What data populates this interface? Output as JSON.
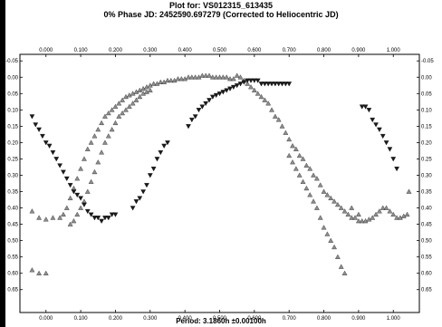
{
  "header": {
    "title_line1": "Plot for: VS012315_613435",
    "title_line2": "0% Phase JD:  2452590.697279   (Corrected to Heliocentric JD)"
  },
  "footer": {
    "period_label": "Period: 3.1860h  ±0.00100h"
  },
  "colors": {
    "frame_bar": "#000000",
    "triangle_up_fill": "#8c8c8c",
    "triangle_down_fill": "#1a1a1a"
  },
  "chart_data": {
    "type": "scatter",
    "title": "Plot for: VS012315_613435",
    "xlabel": "Period: 3.1860h  ±0.00100h",
    "ylabel": "",
    "xlim": [
      -0.075,
      1.075
    ],
    "ylim": [
      0.72,
      -0.07
    ],
    "x_tick_labels": [
      "0.000",
      "0.100",
      "0.200",
      "0.300",
      "0.400",
      "0.500",
      "0.600",
      "0.700",
      "0.800",
      "0.900",
      "1.000"
    ],
    "y_tick_labels": [
      "-0.05",
      "0.00",
      "0.05",
      "0.10",
      "0.15",
      "0.20",
      "0.25",
      "0.30",
      "0.35",
      "0.40",
      "0.45",
      "0.50",
      "0.55",
      "0.60",
      "0.65"
    ],
    "grid": false,
    "series": [
      {
        "marker": "triangle-up",
        "points": [
          [
            -0.04,
            0.59
          ],
          [
            -0.02,
            0.6
          ],
          [
            0.0,
            0.6
          ],
          [
            -0.04,
            0.41
          ],
          [
            -0.02,
            0.43
          ],
          [
            0.0,
            0.435
          ],
          [
            0.02,
            0.43
          ],
          [
            0.04,
            0.43
          ],
          [
            0.05,
            0.42
          ],
          [
            0.06,
            0.4
          ],
          [
            0.07,
            0.37
          ],
          [
            0.08,
            0.34
          ],
          [
            0.09,
            0.31
          ],
          [
            0.1,
            0.28
          ],
          [
            0.11,
            0.25
          ],
          [
            0.12,
            0.22
          ],
          [
            0.13,
            0.2
          ],
          [
            0.14,
            0.18
          ],
          [
            0.15,
            0.16
          ],
          [
            0.16,
            0.14
          ],
          [
            0.17,
            0.12
          ],
          [
            0.18,
            0.11
          ],
          [
            0.19,
            0.1
          ],
          [
            0.2,
            0.09
          ],
          [
            0.21,
            0.08
          ],
          [
            0.22,
            0.07
          ],
          [
            0.23,
            0.06
          ],
          [
            0.24,
            0.055
          ],
          [
            0.25,
            0.05
          ],
          [
            0.26,
            0.045
          ],
          [
            0.27,
            0.04
          ],
          [
            0.28,
            0.035
          ],
          [
            0.29,
            0.03
          ],
          [
            0.3,
            0.025
          ],
          [
            0.31,
            0.02
          ],
          [
            0.32,
            0.02
          ],
          [
            0.33,
            0.015
          ],
          [
            0.34,
            0.015
          ],
          [
            0.35,
            0.01
          ],
          [
            0.36,
            0.01
          ],
          [
            0.37,
            0.01
          ],
          [
            0.38,
            0.005
          ],
          [
            0.39,
            0.005
          ],
          [
            0.4,
            0.005
          ],
          [
            0.41,
            0.0
          ],
          [
            0.42,
            0.0
          ],
          [
            0.43,
            0.0
          ],
          [
            0.44,
            0.0
          ],
          [
            0.45,
            -0.005
          ],
          [
            0.46,
            -0.005
          ],
          [
            0.47,
            -0.005
          ],
          [
            0.48,
            0.0
          ],
          [
            0.49,
            0.0
          ],
          [
            0.5,
            0.0
          ],
          [
            0.51,
            0.0
          ],
          [
            0.52,
            0.0
          ],
          [
            0.53,
            0.005
          ],
          [
            0.54,
            0.005
          ],
          [
            0.55,
            -0.005
          ],
          [
            0.56,
            0.0
          ],
          [
            0.57,
            0.01
          ],
          [
            0.58,
            0.02
          ],
          [
            0.59,
            0.03
          ],
          [
            0.6,
            0.04
          ],
          [
            0.61,
            0.05
          ],
          [
            0.62,
            0.06
          ],
          [
            0.63,
            0.07
          ],
          [
            0.64,
            0.08
          ],
          [
            0.65,
            0.1
          ],
          [
            0.66,
            0.12
          ],
          [
            0.67,
            0.13
          ],
          [
            0.68,
            0.15
          ],
          [
            0.69,
            0.17
          ],
          [
            0.7,
            0.19
          ],
          [
            0.71,
            0.21
          ],
          [
            0.72,
            0.22
          ],
          [
            0.73,
            0.24
          ],
          [
            0.74,
            0.25
          ],
          [
            0.75,
            0.27
          ],
          [
            0.76,
            0.28
          ],
          [
            0.77,
            0.3
          ],
          [
            0.78,
            0.31
          ],
          [
            0.79,
            0.33
          ],
          [
            0.8,
            0.35
          ],
          [
            0.81,
            0.36
          ],
          [
            0.82,
            0.37
          ],
          [
            0.83,
            0.38
          ],
          [
            0.84,
            0.39
          ],
          [
            0.85,
            0.4
          ],
          [
            0.86,
            0.41
          ],
          [
            0.87,
            0.42
          ],
          [
            0.88,
            0.43
          ],
          [
            0.89,
            0.43
          ],
          [
            0.9,
            0.44
          ],
          [
            0.91,
            0.44
          ],
          [
            0.92,
            0.44
          ],
          [
            0.93,
            0.435
          ],
          [
            0.94,
            0.43
          ],
          [
            0.95,
            0.42
          ],
          [
            0.96,
            0.41
          ],
          [
            0.97,
            0.4
          ],
          [
            0.98,
            0.4
          ],
          [
            0.99,
            0.41
          ],
          [
            1.0,
            0.42
          ],
          [
            1.01,
            0.43
          ],
          [
            1.02,
            0.43
          ],
          [
            1.03,
            0.425
          ],
          [
            1.04,
            0.42
          ],
          [
            1.045,
            0.35
          ],
          [
            0.07,
            0.45
          ],
          [
            0.08,
            0.44
          ],
          [
            0.09,
            0.42
          ],
          [
            0.1,
            0.4
          ],
          [
            0.11,
            0.38
          ],
          [
            0.12,
            0.35
          ],
          [
            0.13,
            0.32
          ],
          [
            0.14,
            0.29
          ],
          [
            0.15,
            0.26
          ],
          [
            0.16,
            0.23
          ],
          [
            0.17,
            0.2
          ],
          [
            0.18,
            0.18
          ],
          [
            0.19,
            0.16
          ],
          [
            0.2,
            0.14
          ],
          [
            0.21,
            0.12
          ],
          [
            0.22,
            0.11
          ],
          [
            0.23,
            0.1
          ],
          [
            0.24,
            0.09
          ],
          [
            0.25,
            0.08
          ],
          [
            0.26,
            0.07
          ],
          [
            0.27,
            0.06
          ],
          [
            0.28,
            0.05
          ],
          [
            0.29,
            0.045
          ],
          [
            0.3,
            0.04
          ],
          [
            0.7,
            0.24
          ],
          [
            0.71,
            0.26
          ],
          [
            0.72,
            0.28
          ],
          [
            0.73,
            0.3
          ],
          [
            0.74,
            0.32
          ],
          [
            0.75,
            0.34
          ],
          [
            0.76,
            0.36
          ],
          [
            0.77,
            0.38
          ],
          [
            0.78,
            0.4
          ],
          [
            0.79,
            0.43
          ],
          [
            0.8,
            0.46
          ],
          [
            0.81,
            0.48
          ],
          [
            0.82,
            0.5
          ],
          [
            0.83,
            0.52
          ],
          [
            0.84,
            0.55
          ],
          [
            0.85,
            0.58
          ],
          [
            0.86,
            0.6
          ],
          [
            0.88,
            0.4
          ],
          [
            0.9,
            0.42
          ]
        ]
      },
      {
        "marker": "triangle-down",
        "points": [
          [
            -0.04,
            0.12
          ],
          [
            -0.03,
            0.145
          ],
          [
            -0.02,
            0.16
          ],
          [
            -0.01,
            0.18
          ],
          [
            0.0,
            0.2
          ],
          [
            0.01,
            0.21
          ],
          [
            0.02,
            0.23
          ],
          [
            0.03,
            0.25
          ],
          [
            0.04,
            0.27
          ],
          [
            0.05,
            0.29
          ],
          [
            0.06,
            0.31
          ],
          [
            0.07,
            0.33
          ],
          [
            0.08,
            0.35
          ],
          [
            0.09,
            0.36
          ],
          [
            0.1,
            0.37
          ],
          [
            0.11,
            0.39
          ],
          [
            0.12,
            0.41
          ],
          [
            0.13,
            0.42
          ],
          [
            0.14,
            0.43
          ],
          [
            0.15,
            0.43
          ],
          [
            0.16,
            0.44
          ],
          [
            0.17,
            0.43
          ],
          [
            0.18,
            0.43
          ],
          [
            0.19,
            0.42
          ],
          [
            0.2,
            0.42
          ],
          [
            0.25,
            0.4
          ],
          [
            0.26,
            0.38
          ],
          [
            0.27,
            0.37
          ],
          [
            0.28,
            0.35
          ],
          [
            0.29,
            0.33
          ],
          [
            0.3,
            0.3
          ],
          [
            0.31,
            0.28
          ],
          [
            0.32,
            0.25
          ],
          [
            0.33,
            0.23
          ],
          [
            0.34,
            0.21
          ],
          [
            0.35,
            0.2
          ],
          [
            0.41,
            0.15
          ],
          [
            0.42,
            0.13
          ],
          [
            0.43,
            0.12
          ],
          [
            0.44,
            0.1
          ],
          [
            0.45,
            0.09
          ],
          [
            0.46,
            0.08
          ],
          [
            0.47,
            0.07
          ],
          [
            0.48,
            0.06
          ],
          [
            0.49,
            0.055
          ],
          [
            0.5,
            0.05
          ],
          [
            0.51,
            0.045
          ],
          [
            0.52,
            0.04
          ],
          [
            0.53,
            0.035
          ],
          [
            0.54,
            0.03
          ],
          [
            0.55,
            0.025
          ],
          [
            0.56,
            0.02
          ],
          [
            0.57,
            0.015
          ],
          [
            0.58,
            0.01
          ],
          [
            0.59,
            0.01
          ],
          [
            0.6,
            0.01
          ],
          [
            0.61,
            0.01
          ],
          [
            0.62,
            0.02
          ],
          [
            0.63,
            0.02
          ],
          [
            0.64,
            0.02
          ],
          [
            0.65,
            0.02
          ],
          [
            0.66,
            0.02
          ],
          [
            0.67,
            0.02
          ],
          [
            0.68,
            0.02
          ],
          [
            0.69,
            0.02
          ],
          [
            0.7,
            0.02
          ],
          [
            0.91,
            0.09
          ],
          [
            0.92,
            0.09
          ],
          [
            0.93,
            0.1
          ],
          [
            0.94,
            0.13
          ],
          [
            0.95,
            0.145
          ],
          [
            0.96,
            0.16
          ],
          [
            0.97,
            0.18
          ],
          [
            0.98,
            0.2
          ],
          [
            0.99,
            0.22
          ],
          [
            1.0,
            0.25
          ],
          [
            1.01,
            0.28
          ]
        ]
      }
    ]
  }
}
